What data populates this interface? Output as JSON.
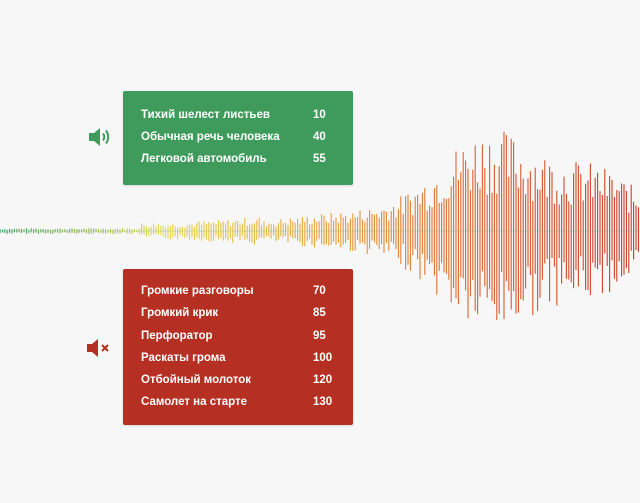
{
  "colors": {
    "quiet_panel": "#3f9b5b",
    "loud_panel": "#b52f22",
    "wave_gradient": [
      "#3f9b5b",
      "#e5d84a",
      "#e8a33a",
      "#d9622e",
      "#c93a2a"
    ]
  },
  "quiet_sounds": {
    "icon": "speaker-icon",
    "items": [
      {
        "label": "Тихий шелест листьев",
        "value": "10"
      },
      {
        "label": "Обычная речь человека",
        "value": "40"
      },
      {
        "label": "Легковой автомобиль",
        "value": "55"
      }
    ]
  },
  "loud_sounds": {
    "icon": "speaker-muted-icon",
    "items": [
      {
        "label": "Громкие разговоры",
        "value": "70"
      },
      {
        "label": "Громкий крик",
        "value": "85"
      },
      {
        "label": "Перфоратор",
        "value": "95"
      },
      {
        "label": "Раскаты грома",
        "value": "100"
      },
      {
        "label": "Отбойный молоток",
        "value": "120"
      },
      {
        "label": "Самолет на старте",
        "value": "130"
      }
    ]
  }
}
